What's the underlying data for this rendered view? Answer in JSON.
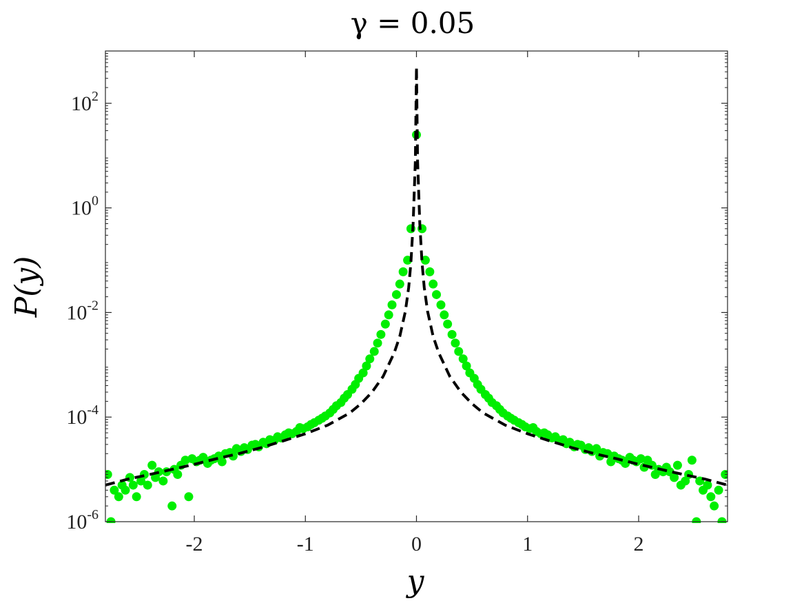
{
  "chart_data": {
    "type": "scatter",
    "title": "γ = 0.05",
    "xlabel": "y",
    "ylabel": "P(y)",
    "xlim": [
      -2.8,
      2.8
    ],
    "ylim": [
      1e-06,
      1000
    ],
    "yscale": "log",
    "grid": false,
    "x_ticks": [
      -2,
      -1,
      0,
      1,
      2
    ],
    "x_tick_labels": [
      "-2",
      "-1",
      "0",
      "1",
      "2"
    ],
    "y_ticks": [
      1e-06,
      0.0001,
      0.01,
      1,
      100
    ],
    "y_tick_labels": [
      {
        "base": "10",
        "exp": "-6"
      },
      {
        "base": "10",
        "exp": "-4"
      },
      {
        "base": "10",
        "exp": "-2"
      },
      {
        "base": "10",
        "exp": "0"
      },
      {
        "base": "10",
        "exp": "2"
      }
    ],
    "colors": {
      "markers": "#00ee00",
      "curve": "#000000"
    },
    "series": [
      {
        "style": "markers",
        "x": [
          -2.78,
          -2.75,
          -2.72,
          -2.68,
          -2.65,
          -2.62,
          -2.58,
          -2.55,
          -2.52,
          -2.48,
          -2.45,
          -2.42,
          -2.38,
          -2.35,
          -2.32,
          -2.28,
          -2.25,
          -2.2,
          -2.18,
          -2.15,
          -2.12,
          -2.08,
          -2.05,
          -2.02,
          -1.98,
          -1.95,
          -1.92,
          -1.88,
          -1.85,
          -1.82,
          -1.78,
          -1.75,
          -1.72,
          -1.68,
          -1.65,
          -1.62,
          -1.58,
          -1.55,
          -1.52,
          -1.48,
          -1.45,
          -1.42,
          -1.38,
          -1.35,
          -1.32,
          -1.28,
          -1.25,
          -1.22,
          -1.18,
          -1.15,
          -1.12,
          -1.08,
          -1.05,
          -1.02,
          -0.98,
          -0.95,
          -0.92,
          -0.88,
          -0.85,
          -0.82,
          -0.78,
          -0.75,
          -0.72,
          -0.68,
          -0.65,
          -0.62,
          -0.58,
          -0.55,
          -0.52,
          -0.48,
          -0.45,
          -0.42,
          -0.38,
          -0.35,
          -0.32,
          -0.28,
          -0.25,
          -0.22,
          -0.18,
          -0.15,
          -0.12,
          -0.08,
          -0.05,
          0,
          0.05,
          0.08,
          0.12,
          0.15,
          0.18,
          0.22,
          0.25,
          0.28,
          0.32,
          0.35,
          0.38,
          0.42,
          0.45,
          0.48,
          0.52,
          0.55,
          0.58,
          0.62,
          0.65,
          0.68,
          0.72,
          0.75,
          0.78,
          0.82,
          0.85,
          0.88,
          0.92,
          0.95,
          0.98,
          1.02,
          1.05,
          1.08,
          1.12,
          1.15,
          1.18,
          1.22,
          1.25,
          1.28,
          1.32,
          1.35,
          1.38,
          1.42,
          1.45,
          1.48,
          1.52,
          1.55,
          1.58,
          1.62,
          1.65,
          1.68,
          1.72,
          1.75,
          1.78,
          1.82,
          1.85,
          1.88,
          1.92,
          1.95,
          1.98,
          2.02,
          2.05,
          2.08,
          2.12,
          2.15,
          2.18,
          2.22,
          2.25,
          2.28,
          2.32,
          2.35,
          2.38,
          2.42,
          2.45,
          2.48,
          2.52,
          2.55,
          2.58,
          2.62,
          2.65,
          2.68,
          2.72,
          2.75,
          2.78
        ],
        "y": [
          8e-06,
          1e-06,
          4e-06,
          3e-06,
          5e-06,
          4e-06,
          7e-06,
          5e-06,
          3e-06,
          6e-06,
          8e-06,
          5e-06,
          1.2e-05,
          7e-06,
          9e-06,
          6e-06,
          9e-06,
          2e-06,
          1e-05,
          8e-06,
          1.2e-05,
          1.5e-05,
          3e-06,
          1.6e-05,
          1.4e-05,
          1.5e-05,
          1.7e-05,
          1.3e-05,
          1.5e-05,
          1.6e-05,
          1.8e-05,
          1.4e-05,
          2e-05,
          2.1e-05,
          1.8e-05,
          2.5e-05,
          2.2e-05,
          2.6e-05,
          2.4e-05,
          2.9e-05,
          3e-05,
          2.7e-05,
          3.3e-05,
          3.1e-05,
          3.7e-05,
          3.6e-05,
          4.2e-05,
          4e-05,
          4.6e-05,
          5e-05,
          4.8e-05,
          5.3e-05,
          6.3e-05,
          6e-05,
          6.5e-05,
          7.2e-05,
          7.8e-05,
          8.7e-05,
          9.5e-05,
          0.000105,
          0.00012,
          0.00014,
          0.000165,
          0.00019,
          0.00023,
          0.00027,
          0.00034,
          0.00042,
          0.00055,
          0.0007,
          0.00095,
          0.0013,
          0.0018,
          0.0026,
          0.0038,
          0.006,
          0.009,
          0.014,
          0.022,
          0.035,
          0.06,
          0.1,
          0.4,
          25,
          0.4,
          0.1,
          0.06,
          0.035,
          0.022,
          0.014,
          0.009,
          0.006,
          0.0038,
          0.0026,
          0.0018,
          0.0013,
          0.00095,
          0.0007,
          0.00055,
          0.00042,
          0.00034,
          0.00027,
          0.00023,
          0.00019,
          0.000165,
          0.00014,
          0.00012,
          0.000105,
          9.5e-05,
          8.7e-05,
          7.8e-05,
          7.2e-05,
          6.5e-05,
          6e-05,
          6.3e-05,
          5.3e-05,
          4.8e-05,
          5e-05,
          4.6e-05,
          4e-05,
          4.2e-05,
          3.6e-05,
          3.7e-05,
          3.1e-05,
          3.3e-05,
          2.7e-05,
          3e-05,
          2.9e-05,
          2.4e-05,
          2.6e-05,
          2.2e-05,
          2.5e-05,
          1.8e-05,
          2.1e-05,
          2e-05,
          1.4e-05,
          1.8e-05,
          1.6e-05,
          1.5e-05,
          1.3e-05,
          1.7e-05,
          1.5e-05,
          1.4e-05,
          1.6e-05,
          1.1e-05,
          1.5e-05,
          1.2e-05,
          8e-06,
          1e-05,
          9e-06,
          1.1e-05,
          9e-06,
          7e-06,
          1.2e-05,
          5e-06,
          6e-06,
          8e-06,
          1.5e-05,
          1e-06,
          6e-06,
          4e-06,
          5e-06,
          3e-06,
          2e-06,
          4e-06,
          1e-06,
          8e-06
        ]
      },
      {
        "style": "dashed-line",
        "x": [
          -2.8,
          -2.6,
          -2.4,
          -2.2,
          -2,
          -1.8,
          -1.6,
          -1.4,
          -1.2,
          -1,
          -0.8,
          -0.6,
          -0.5,
          -0.4,
          -0.3,
          -0.2,
          -0.15,
          -0.1,
          -0.07,
          -0.05,
          -0.03,
          -0.01,
          0,
          0.01,
          0.03,
          0.05,
          0.07,
          0.1,
          0.15,
          0.2,
          0.3,
          0.4,
          0.5,
          0.6,
          0.8,
          1,
          1.2,
          1.4,
          1.6,
          1.8,
          2,
          2.2,
          2.4,
          2.6,
          2.8
        ],
        "y": [
          5e-06,
          6.5e-06,
          8e-06,
          1e-05,
          1.25e-05,
          1.6e-05,
          2e-05,
          2.6e-05,
          3.5e-05,
          4.8e-05,
          7e-05,
          0.00012,
          0.00018,
          0.0003,
          0.0006,
          0.0017,
          0.0035,
          0.0105,
          0.03,
          0.09,
          0.5,
          8,
          500,
          8,
          0.5,
          0.09,
          0.03,
          0.0105,
          0.0035,
          0.0017,
          0.0006,
          0.0003,
          0.00018,
          0.00012,
          7e-05,
          4.8e-05,
          3.5e-05,
          2.6e-05,
          2e-05,
          1.6e-05,
          1.25e-05,
          1e-05,
          8e-06,
          6.5e-06,
          5e-06
        ]
      }
    ]
  }
}
